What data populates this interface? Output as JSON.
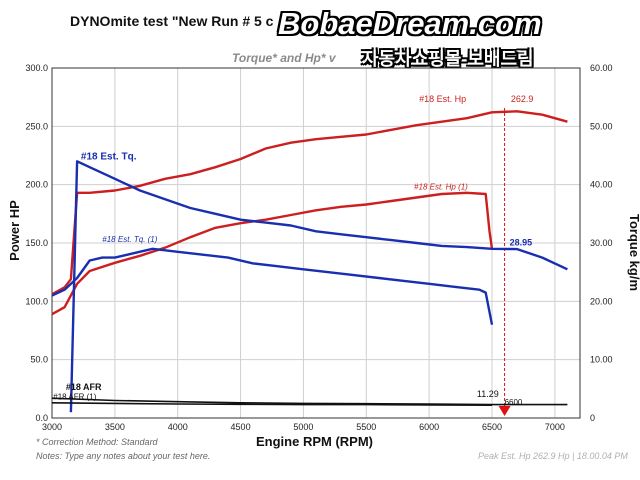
{
  "header": {
    "title": "DYNOmite test \"New Run # 5 c",
    "subtitle": "Torque* and Hp* v",
    "brand": "BobaeDream.com",
    "brand_sub": "자동차쇼핑몰-보배드림"
  },
  "notes": {
    "correction": "* Correction Method: Standard",
    "notes": "Notes: Type any notes about your test here.",
    "stamp": "Peak Est. Hp 262.9 Hp | 18.00.04 PM"
  },
  "colors": {
    "hp_series": "#cc1f1f",
    "tq_series": "#1a2fb0",
    "afr_series": "#111111",
    "grid": "#cfcfcf",
    "marker": "#e01010"
  },
  "chart_data": {
    "type": "line",
    "xlabel": "Engine RPM (RPM)",
    "ylabel": "Power HP",
    "y2label": "Torque kg/m",
    "xlim": [
      3000,
      7200
    ],
    "ylim": [
      0,
      300
    ],
    "y2lim": [
      0,
      60
    ],
    "x_ticks": [
      "3000",
      "3500",
      "4000",
      "4500",
      "5000",
      "5500",
      "6000",
      "6500",
      "7000"
    ],
    "y_ticks": [
      "0.0",
      "50.0",
      "100.0",
      "150.0",
      "200.0",
      "250.0",
      "300.0"
    ],
    "y2_ticks": [
      "0",
      "10.00",
      "20.00",
      "30.00",
      "40.00",
      "50.00",
      "60.00"
    ],
    "grid": true,
    "series": [
      {
        "name": "#18 Est. Hp",
        "axis": "left",
        "color": "#cc1f1f",
        "x": [
          3000,
          3100,
          3150,
          3200,
          3300,
          3500,
          3700,
          3900,
          4100,
          4300,
          4500,
          4700,
          4900,
          5100,
          5300,
          5500,
          5700,
          5900,
          6100,
          6300,
          6500,
          6700,
          6900,
          7100
        ],
        "y": [
          106,
          112,
          119,
          193,
          193,
          195,
          199,
          205,
          209,
          215,
          222,
          231,
          236,
          239,
          241,
          243,
          247,
          251,
          254,
          257,
          262,
          262.9,
          260,
          254
        ]
      },
      {
        "name": "#18 Est. Hp (1)",
        "axis": "left",
        "color": "#cc1f1f",
        "x": [
          3000,
          3100,
          3200,
          3300,
          3500,
          3700,
          3900,
          4100,
          4300,
          4500,
          4700,
          4900,
          5100,
          5300,
          5500,
          5700,
          5900,
          6100,
          6300,
          6450,
          6480,
          6500
        ],
        "y": [
          89,
          95,
          115,
          126,
          133,
          139,
          146,
          155,
          163,
          167,
          170,
          174,
          178,
          181,
          183,
          186,
          189,
          192,
          193,
          192,
          160,
          145
        ]
      },
      {
        "name": "#18 Est. Tq.",
        "axis": "right",
        "color": "#1a2fb0",
        "x": [
          3150,
          3200,
          3300,
          3500,
          3700,
          3900,
          4100,
          4300,
          4500,
          4700,
          4900,
          5100,
          5300,
          5500,
          5700,
          5900,
          6100,
          6300,
          6500,
          6700,
          6900,
          7100
        ],
        "y": [
          1,
          44,
          43,
          41,
          39,
          37.5,
          36,
          35,
          34,
          33.5,
          33,
          32,
          31.5,
          31,
          30.5,
          30,
          29.5,
          29.3,
          29,
          28.95,
          27.5,
          25.5
        ]
      },
      {
        "name": "#18 Est. Tq. (1)",
        "axis": "right",
        "color": "#1a2fb0",
        "x": [
          3000,
          3100,
          3200,
          3300,
          3400,
          3500,
          3600,
          3800,
          4000,
          4200,
          4400,
          4600,
          4800,
          5000,
          5200,
          5400,
          5600,
          5800,
          6000,
          6200,
          6400,
          6450,
          6500
        ],
        "y": [
          21,
          22,
          24,
          27,
          27.5,
          27.5,
          28,
          29,
          28.5,
          28,
          27.5,
          26.5,
          26,
          25.5,
          25,
          24.5,
          24,
          23.5,
          23,
          22.5,
          22,
          21.5,
          16
        ]
      },
      {
        "name": "#18 AFR",
        "axis": "right",
        "color": "#111111",
        "x": [
          3000,
          3500,
          4000,
          4500,
          5000,
          5500,
          6000,
          6500,
          7100
        ],
        "y": [
          3.4,
          3.0,
          2.8,
          2.6,
          2.5,
          2.45,
          2.4,
          2.3,
          2.3
        ]
      },
      {
        "name": "#18 AFR (1)",
        "axis": "right",
        "color": "#111111",
        "x": [
          3000,
          3500,
          4000,
          4500,
          5000,
          5500,
          6000,
          6500
        ],
        "y": [
          2.6,
          2.5,
          2.4,
          2.35,
          2.3,
          2.3,
          2.25,
          2.2
        ]
      }
    ],
    "annotations": [
      {
        "text": "#18 Est. Hp",
        "series": 0
      },
      {
        "text": "262.9",
        "value": 262.9
      },
      {
        "text": "#18 Est. Hp (1)",
        "series": 1
      },
      {
        "text": "#18 Est. Tq.",
        "series": 2
      },
      {
        "text": "#18 Est. Tq. (1)",
        "series": 3
      },
      {
        "text": "28.95",
        "value": 28.95
      },
      {
        "text": "#18 AFR",
        "series": 4
      },
      {
        "text": "#18 AFR (1)",
        "series": 5
      },
      {
        "text": "11.29",
        "value": 11.29
      },
      {
        "text": "6600",
        "value": 6600
      }
    ],
    "cursor_rpm": 6600
  }
}
